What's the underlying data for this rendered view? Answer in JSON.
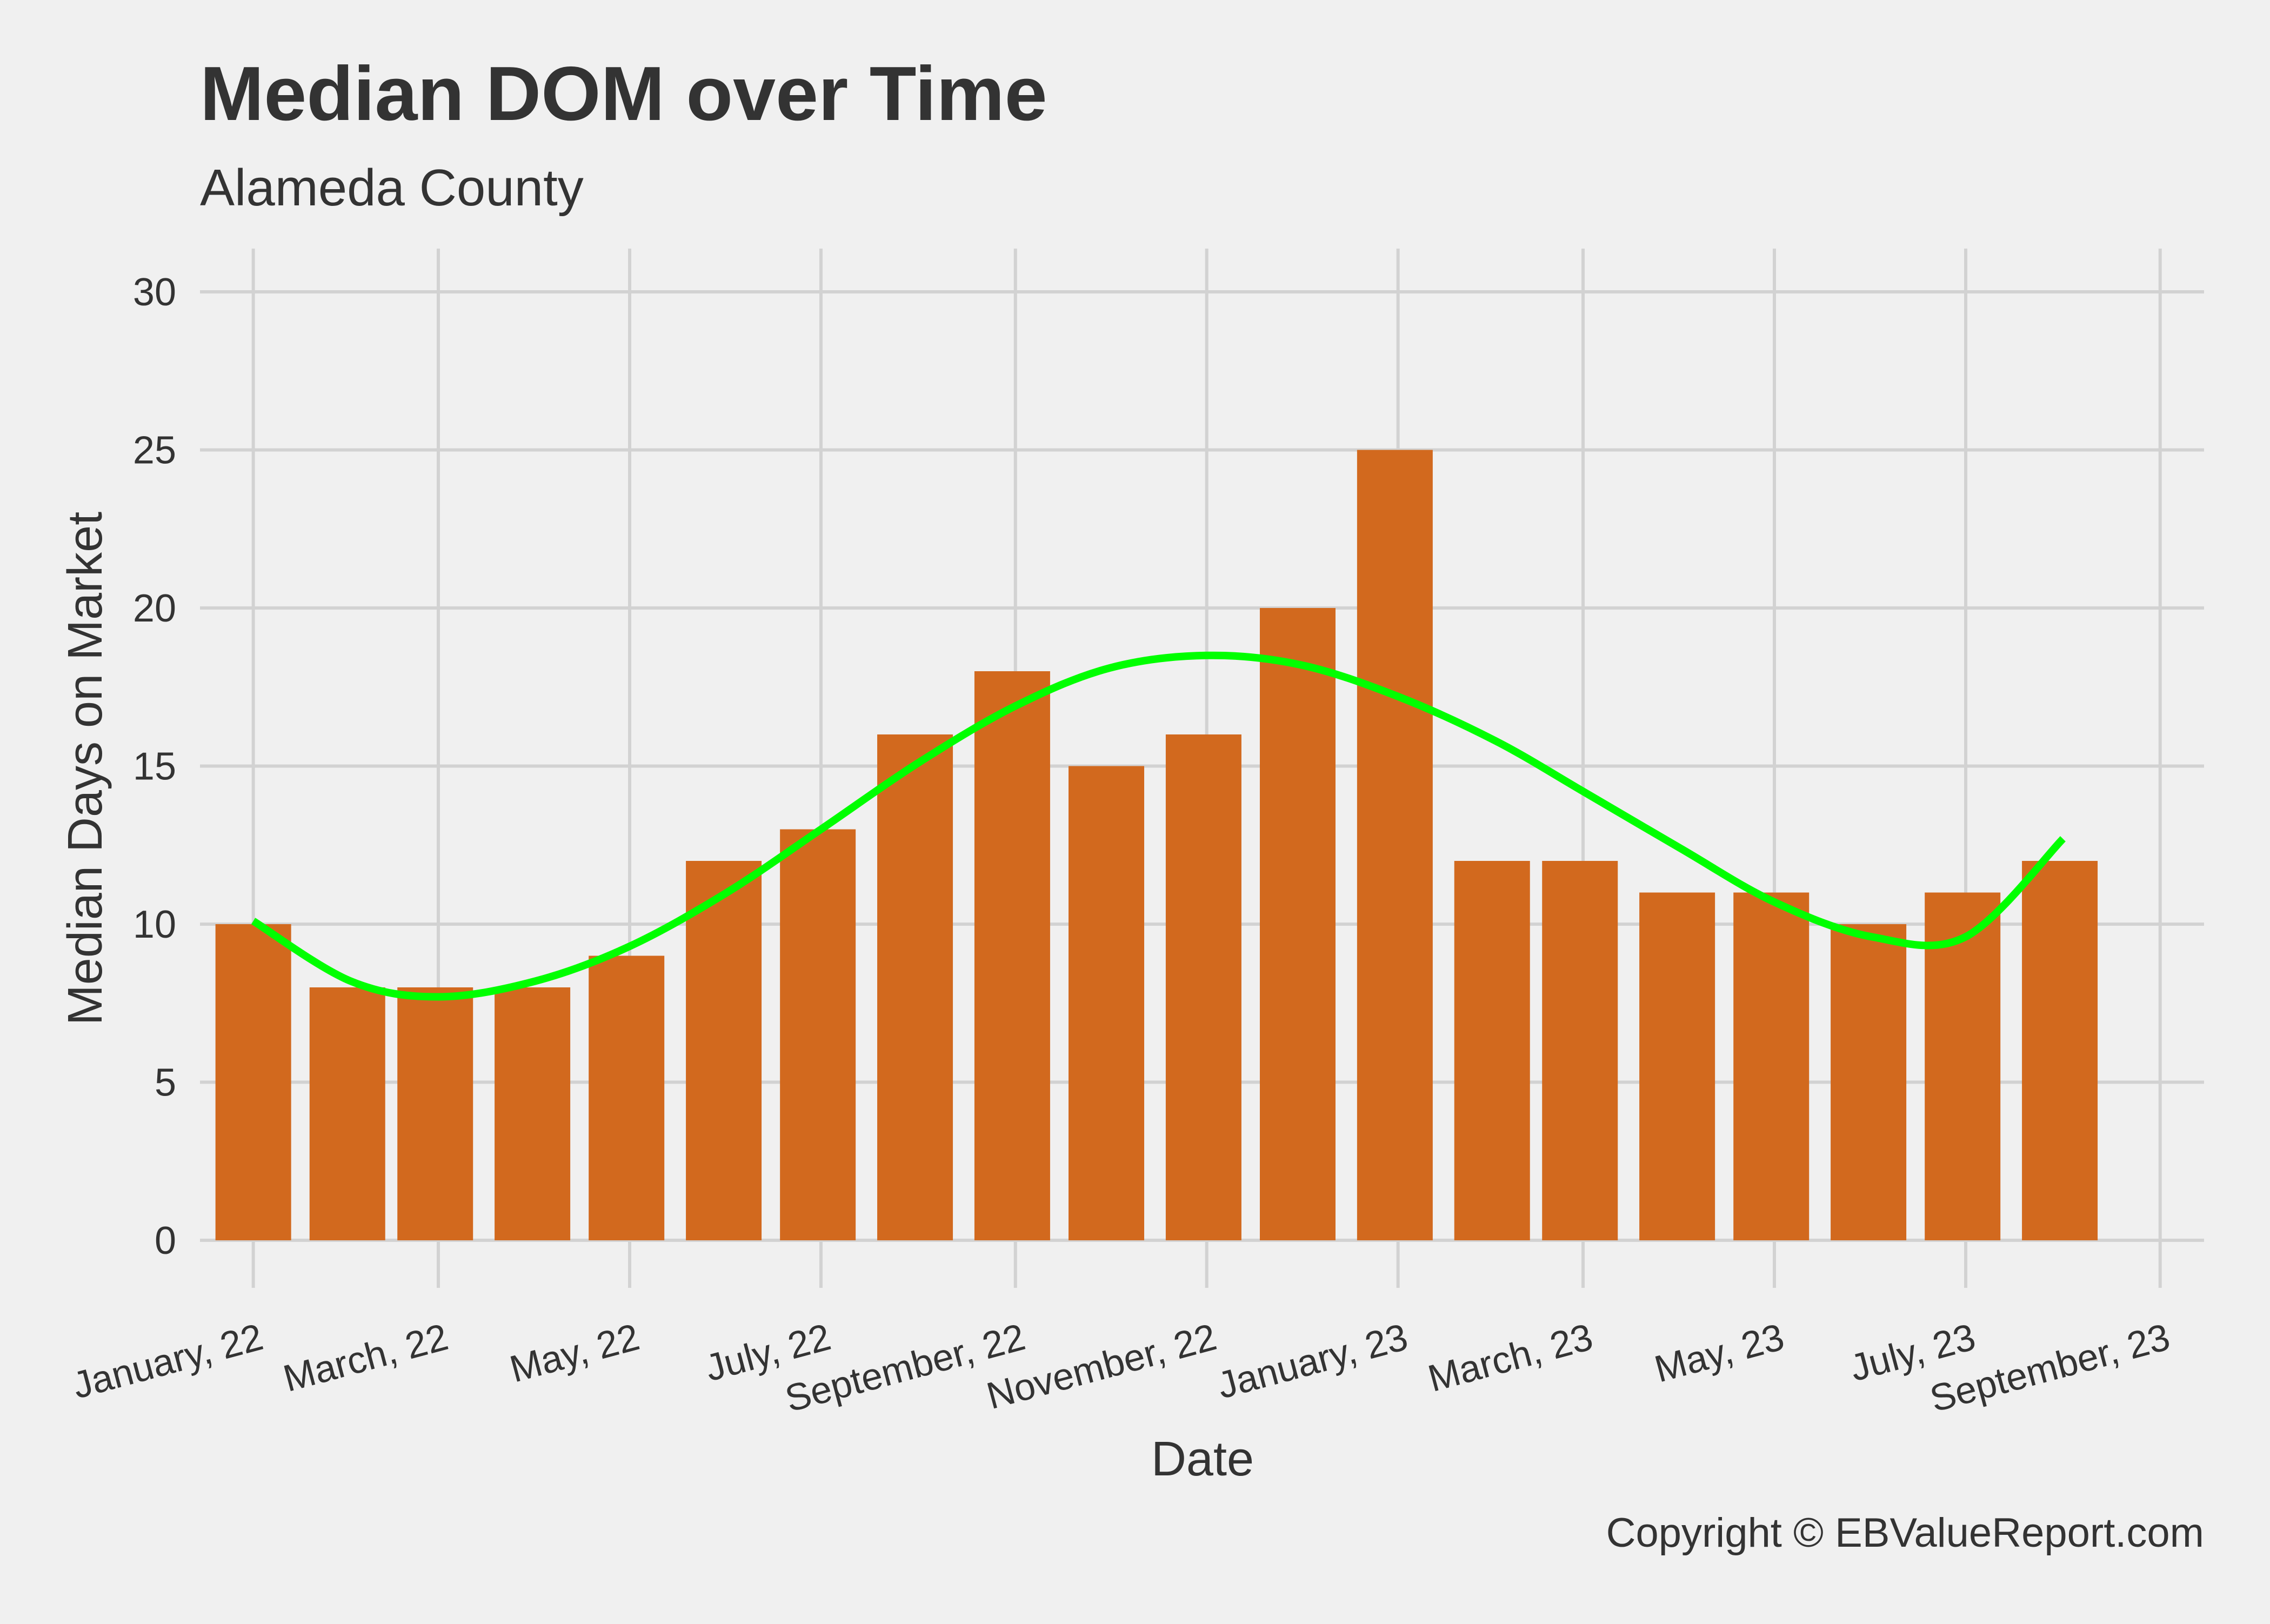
{
  "chart_data": {
    "type": "bar",
    "title": "Median DOM over Time",
    "subtitle": "Alameda County",
    "xlabel": "Date",
    "ylabel": "Median Days on Market",
    "caption": "Copyright  © EBValueReport.com",
    "ylim": [
      0,
      30
    ],
    "yticks": [
      0,
      5,
      10,
      15,
      20,
      25,
      30
    ],
    "xlim": [
      "2021-12-15",
      "2023-09-15"
    ],
    "xticks": [
      {
        "date": "2022-01-01",
        "label": "January, 22"
      },
      {
        "date": "2022-03-01",
        "label": "March, 22"
      },
      {
        "date": "2022-05-01",
        "label": "May, 22"
      },
      {
        "date": "2022-07-01",
        "label": "July, 22"
      },
      {
        "date": "2022-09-01",
        "label": "September, 22"
      },
      {
        "date": "2022-11-01",
        "label": "November, 22"
      },
      {
        "date": "2023-01-01",
        "label": "January, 23"
      },
      {
        "date": "2023-03-01",
        "label": "March, 23"
      },
      {
        "date": "2023-05-01",
        "label": "May, 23"
      },
      {
        "date": "2023-07-01",
        "label": "July, 23"
      },
      {
        "date": "2023-09-01",
        "label": "September, 23"
      }
    ],
    "bars": {
      "color": "#d2691e",
      "x": [
        "2022-01-01",
        "2022-01-31",
        "2022-02-28",
        "2022-03-31",
        "2022-04-30",
        "2022-05-31",
        "2022-06-30",
        "2022-07-31",
        "2022-08-31",
        "2022-09-30",
        "2022-10-31",
        "2022-11-30",
        "2022-12-31",
        "2023-01-31",
        "2023-02-28",
        "2023-03-31",
        "2023-04-30",
        "2023-05-31",
        "2023-06-30",
        "2023-07-31"
      ],
      "values": [
        10,
        8,
        8,
        8,
        9,
        12,
        13,
        16,
        18,
        15,
        16,
        20,
        25,
        12,
        12,
        11,
        11,
        10,
        11,
        12
      ]
    },
    "trend": {
      "color": "#00ff00",
      "x": [
        "2022-01-01",
        "2022-02-01",
        "2022-03-01",
        "2022-04-01",
        "2022-05-01",
        "2022-06-01",
        "2022-07-01",
        "2022-08-01",
        "2022-09-01",
        "2022-10-01",
        "2022-11-01",
        "2022-12-01",
        "2023-01-01",
        "2023-02-01",
        "2023-03-01",
        "2023-04-01",
        "2023-05-01",
        "2023-06-01",
        "2023-07-01",
        "2023-08-01"
      ],
      "values": [
        10.1,
        8.2,
        7.7,
        8.2,
        9.3,
        11.0,
        13.0,
        15.1,
        16.9,
        18.1,
        18.5,
        18.2,
        17.2,
        15.8,
        14.2,
        12.4,
        10.7,
        9.6,
        9.6,
        12.7
      ]
    },
    "grid": true,
    "legend": "none"
  }
}
